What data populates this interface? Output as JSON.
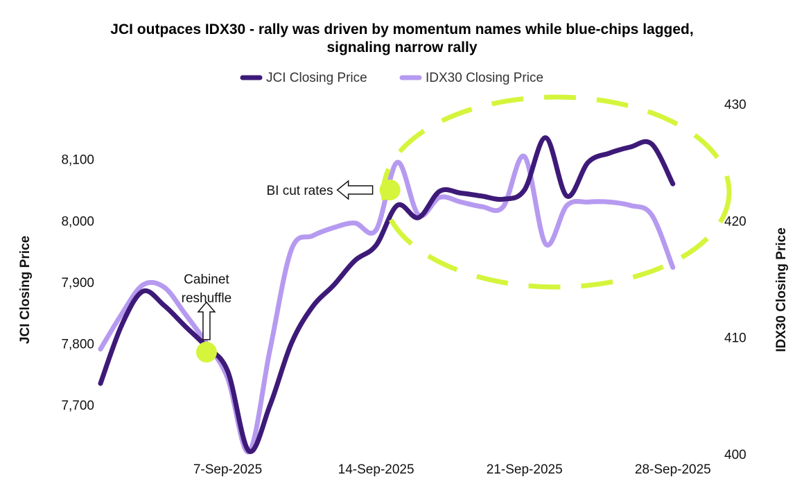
{
  "chart_data": {
    "type": "line",
    "title": "JCI outpaces IDX30 - rally was driven by momentum names while blue-chips lagged, signaling narrow rally",
    "title_lines": [
      "JCI outpaces IDX30 - rally was driven by momentum names while blue-chips lagged,",
      "signaling narrow rally"
    ],
    "legend": {
      "placement": "top-center",
      "items": [
        "JCI Closing Price",
        "IDX30 Closing Price"
      ]
    },
    "x_tick_labels": [
      "7-Sep-2025",
      "14-Sep-2025",
      "21-Sep-2025",
      "28-Sep-2025"
    ],
    "x_ticks": [
      "2025-09-07",
      "2025-09-14",
      "2025-09-21",
      "2025-09-28"
    ],
    "x_range": [
      "2025-09-01",
      "2025-09-30"
    ],
    "y_left": {
      "label": "JCI Closing Price",
      "range": [
        7620,
        8190
      ],
      "ticks": [
        7700,
        7800,
        7900,
        8000,
        8100
      ],
      "tick_labels": [
        "7,700",
        "7,800",
        "7,900",
        "8,000",
        "8,100"
      ]
    },
    "y_right": {
      "label": "IDX30 Closing Price",
      "range": [
        400,
        430
      ],
      "ticks": [
        400,
        410,
        420,
        430
      ],
      "tick_labels": [
        "400",
        "410",
        "420",
        "430"
      ]
    },
    "grid": false,
    "series": [
      {
        "name": "JCI Closing Price",
        "axis": "left",
        "color": "#3d1a78",
        "points": [
          [
            "2025-09-01",
            7735
          ],
          [
            "2025-09-02",
            7830
          ],
          [
            "2025-09-03",
            7885
          ],
          [
            "2025-09-04",
            7862
          ],
          [
            "2025-09-05",
            7828
          ],
          [
            "2025-09-06",
            7795
          ],
          [
            "2025-09-07",
            7755
          ],
          [
            "2025-09-08",
            7625
          ],
          [
            "2025-09-09",
            7700
          ],
          [
            "2025-09-10",
            7800
          ],
          [
            "2025-09-11",
            7860
          ],
          [
            "2025-09-12",
            7895
          ],
          [
            "2025-09-13",
            7935
          ],
          [
            "2025-09-14",
            7960
          ],
          [
            "2025-09-15",
            8025
          ],
          [
            "2025-09-16",
            8005
          ],
          [
            "2025-09-17",
            8048
          ],
          [
            "2025-09-18",
            8045
          ],
          [
            "2025-09-19",
            8040
          ],
          [
            "2025-09-20",
            8035
          ],
          [
            "2025-09-21",
            8050
          ],
          [
            "2025-09-22",
            8135
          ],
          [
            "2025-09-23",
            8040
          ],
          [
            "2025-09-24",
            8095
          ],
          [
            "2025-09-25",
            8110
          ],
          [
            "2025-09-26",
            8120
          ],
          [
            "2025-09-27",
            8125
          ],
          [
            "2025-09-28",
            8060
          ]
        ]
      },
      {
        "name": "IDX30 Closing Price",
        "axis": "right",
        "color": "#b69af0",
        "points": [
          [
            "2025-09-01",
            409
          ],
          [
            "2025-09-02",
            412
          ],
          [
            "2025-09-03",
            414.5
          ],
          [
            "2025-09-04",
            414.3
          ],
          [
            "2025-09-05",
            412
          ],
          [
            "2025-09-06",
            409.5
          ],
          [
            "2025-09-07",
            406.5
          ],
          [
            "2025-09-08",
            400.2
          ],
          [
            "2025-09-09",
            409
          ],
          [
            "2025-09-10",
            417.5
          ],
          [
            "2025-09-11",
            418.7
          ],
          [
            "2025-09-12",
            419.4
          ],
          [
            "2025-09-13",
            419.8
          ],
          [
            "2025-09-14",
            419.2
          ],
          [
            "2025-09-15",
            425
          ],
          [
            "2025-09-16",
            420.5
          ],
          [
            "2025-09-17",
            422
          ],
          [
            "2025-09-18",
            421.6
          ],
          [
            "2025-09-19",
            421.2
          ],
          [
            "2025-09-20",
            421.2
          ],
          [
            "2025-09-21",
            425.5
          ],
          [
            "2025-09-22",
            418
          ],
          [
            "2025-09-23",
            421.3
          ],
          [
            "2025-09-24",
            421.6
          ],
          [
            "2025-09-25",
            421.6
          ],
          [
            "2025-09-26",
            421.3
          ],
          [
            "2025-09-27",
            420.5
          ],
          [
            "2025-09-28",
            416
          ]
        ]
      }
    ],
    "annotations": [
      {
        "text_lines": [
          "Cabinet",
          "reshuffle"
        ],
        "date": "2025-09-06",
        "value": 7786,
        "arrow": "up",
        "marker_color": "#d4f53c"
      },
      {
        "text": "BI cut rates",
        "date": "2025-09-14",
        "value": 8050,
        "arrow": "left",
        "marker_color": "#d4f53c"
      }
    ],
    "highlight": {
      "shape": "dashed-ellipse",
      "color": "#d4f53c",
      "x_range": [
        "2025-09-15",
        "2025-09-30"
      ]
    }
  }
}
